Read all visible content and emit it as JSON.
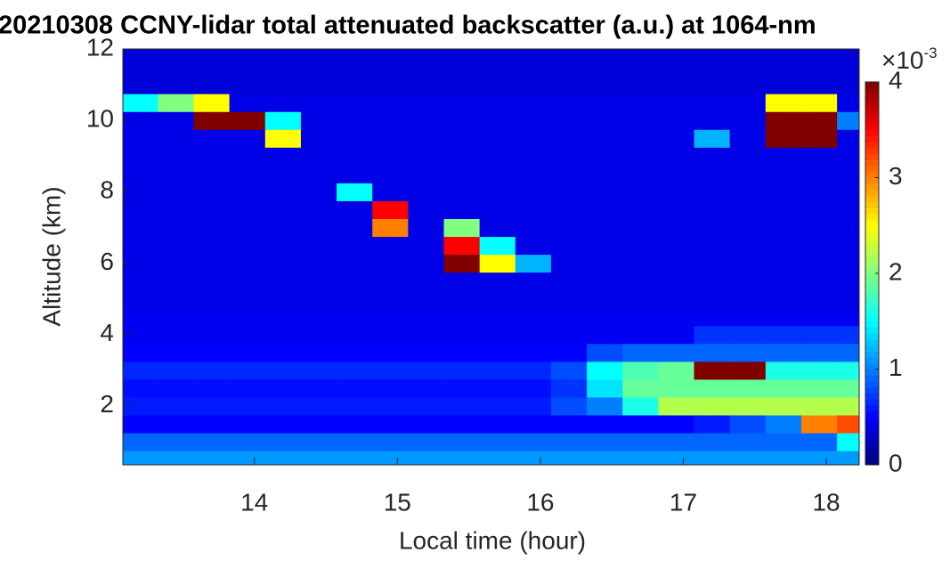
{
  "chart_data": {
    "type": "heatmap",
    "title": "20210308 CCNY-lidar total attenuated backscatter (a.u.) at 1064-nm",
    "x_label": "Local time (hour)",
    "y_label": "Altitude (km)",
    "colormap": "jet",
    "colorbar_scale": "×10",
    "colorbar_exponent": "-3",
    "xlim": [
      13.08,
      18.23
    ],
    "ylim": [
      0.35,
      12
    ],
    "clim": [
      0,
      4
    ],
    "xticks": [
      14,
      15,
      16,
      17,
      18
    ],
    "yticks": [
      2,
      4,
      6,
      8,
      10,
      12
    ],
    "cticks": [
      0,
      1,
      2,
      3,
      4
    ],
    "x": [
      13.2,
      13.45,
      13.7,
      13.95,
      14.2,
      14.45,
      14.7,
      14.95,
      15.2,
      15.45,
      15.7,
      15.95,
      16.2,
      16.45,
      16.7,
      16.95,
      17.2,
      17.45,
      17.7,
      17.95,
      18.2
    ],
    "y": [
      0.5,
      1,
      1.5,
      2,
      2.5,
      3,
      3.5,
      4,
      4.5,
      5,
      5.5,
      6,
      6.5,
      7,
      7.5,
      8,
      8.5,
      9,
      9.5,
      10,
      10.5,
      11,
      11.5,
      12
    ],
    "z": [
      [
        1.1,
        1.1,
        1.1,
        1.1,
        1.1,
        1.1,
        1.1,
        1.1,
        1.1,
        1.1,
        1.1,
        1.1,
        1.1,
        1.1,
        1.1,
        1.1,
        1.1,
        1.1,
        1.1,
        1.1,
        1.1
      ],
      [
        0.9,
        0.9,
        0.9,
        0.9,
        0.9,
        0.9,
        0.9,
        0.9,
        0.9,
        0.9,
        0.9,
        0.9,
        0.9,
        0.9,
        0.9,
        0.9,
        0.9,
        0.9,
        0.9,
        0.9,
        1.5
      ],
      [
        0.5,
        0.5,
        0.5,
        0.5,
        0.5,
        0.5,
        0.5,
        0.5,
        0.5,
        0.5,
        0.5,
        0.5,
        0.5,
        0.5,
        0.5,
        0.5,
        0.6,
        0.8,
        1.0,
        3.0,
        3.2
      ],
      [
        0.6,
        0.6,
        0.6,
        0.6,
        0.6,
        0.6,
        0.6,
        0.6,
        0.6,
        0.6,
        0.6,
        0.6,
        0.8,
        1.0,
        1.6,
        2.2,
        2.2,
        2.2,
        2.2,
        2.2,
        2.2
      ],
      [
        0.55,
        0.55,
        0.55,
        0.55,
        0.55,
        0.55,
        0.55,
        0.55,
        0.55,
        0.55,
        0.55,
        0.55,
        0.7,
        1.4,
        1.9,
        1.9,
        1.9,
        1.9,
        1.9,
        1.9,
        1.9
      ],
      [
        0.65,
        0.65,
        0.65,
        0.65,
        0.65,
        0.65,
        0.65,
        0.65,
        0.65,
        0.65,
        0.65,
        0.65,
        0.8,
        1.5,
        1.8,
        1.9,
        4,
        4,
        1.6,
        1.6,
        1.6
      ],
      [
        0.5,
        0.5,
        0.5,
        0.5,
        0.5,
        0.5,
        0.5,
        0.5,
        0.5,
        0.5,
        0.5,
        0.5,
        0.5,
        0.8,
        0.9,
        0.9,
        0.9,
        0.9,
        0.9,
        0.9,
        0.9
      ],
      [
        0.45,
        0.45,
        0.45,
        0.45,
        0.45,
        0.45,
        0.45,
        0.45,
        0.45,
        0.45,
        0.45,
        0.45,
        0.45,
        0.45,
        0.45,
        0.45,
        0.7,
        0.7,
        0.7,
        0.7,
        0.7
      ],
      [
        0.45,
        0.45,
        0.45,
        0.45,
        0.45,
        0.45,
        0.45,
        0.45,
        0.45,
        0.45,
        0.45,
        0.45,
        0.45,
        0.45,
        0.45,
        0.45,
        0.45,
        0.45,
        0.45,
        0.45,
        0.45
      ],
      [
        0.4,
        0.4,
        0.4,
        0.4,
        0.4,
        0.4,
        0.4,
        0.4,
        0.4,
        0.4,
        0.4,
        0.4,
        0.4,
        0.4,
        0.4,
        0.4,
        0.4,
        0.4,
        0.4,
        0.4,
        0.4
      ],
      [
        0.4,
        0.4,
        0.4,
        0.4,
        0.4,
        0.4,
        0.4,
        0.4,
        0.4,
        0.4,
        0.4,
        0.4,
        0.4,
        0.4,
        0.4,
        0.4,
        0.4,
        0.4,
        0.4,
        0.4,
        0.4
      ],
      [
        0.4,
        0.4,
        0.4,
        0.4,
        0.4,
        0.4,
        0.4,
        0.4,
        0.4,
        4,
        2.5,
        1.2,
        0.4,
        0.4,
        0.4,
        0.4,
        0.4,
        0.4,
        0.4,
        0.4,
        0.4
      ],
      [
        0.4,
        0.4,
        0.4,
        0.4,
        0.4,
        0.4,
        0.4,
        0.4,
        0.4,
        3.5,
        1.5,
        0.4,
        0.4,
        0.4,
        0.4,
        0.4,
        0.4,
        0.4,
        0.4,
        0.4,
        0.4
      ],
      [
        0.4,
        0.4,
        0.4,
        0.4,
        0.4,
        0.4,
        0.4,
        3.0,
        0.4,
        2.0,
        0.4,
        0.4,
        0.4,
        0.4,
        0.4,
        0.4,
        0.4,
        0.4,
        0.4,
        0.4,
        0.4
      ],
      [
        0.4,
        0.4,
        0.4,
        0.4,
        0.4,
        0.4,
        0.4,
        3.5,
        0.4,
        0.4,
        0.4,
        0.4,
        0.4,
        0.4,
        0.4,
        0.4,
        0.4,
        0.4,
        0.4,
        0.4,
        0.4
      ],
      [
        0.4,
        0.4,
        0.4,
        0.4,
        0.4,
        0.4,
        1.5,
        0.4,
        0.4,
        0.4,
        0.4,
        0.4,
        0.4,
        0.4,
        0.4,
        0.4,
        0.4,
        0.4,
        0.4,
        0.4,
        0.4
      ],
      [
        0.4,
        0.4,
        0.4,
        0.4,
        0.4,
        0.4,
        0.4,
        0.4,
        0.4,
        0.4,
        0.4,
        0.4,
        0.4,
        0.4,
        0.4,
        0.4,
        0.4,
        0.4,
        0.4,
        0.4,
        0.4
      ],
      [
        0.4,
        0.4,
        0.4,
        0.4,
        0.4,
        0.4,
        0.4,
        0.4,
        0.4,
        0.4,
        0.4,
        0.4,
        0.4,
        0.4,
        0.4,
        0.4,
        0.4,
        0.4,
        0.4,
        0.4,
        0.4
      ],
      [
        0.4,
        0.4,
        0.4,
        0.4,
        2.5,
        0.4,
        0.4,
        0.4,
        0.4,
        0.4,
        0.4,
        0.4,
        0.4,
        0.4,
        0.4,
        0.4,
        1.2,
        0.4,
        4,
        4,
        0.4
      ],
      [
        0.4,
        0.4,
        4,
        4,
        1.5,
        0.4,
        0.4,
        0.4,
        0.4,
        0.4,
        0.4,
        0.4,
        0.4,
        0.4,
        0.4,
        0.4,
        0.4,
        0.4,
        4,
        4,
        1.0
      ],
      [
        1.5,
        2.0,
        2.5,
        0.4,
        0.4,
        0.4,
        0.4,
        0.4,
        0.4,
        0.4,
        0.4,
        0.4,
        0.4,
        0.4,
        0.4,
        0.4,
        0.4,
        0.4,
        2.5,
        2.5,
        0.4
      ],
      [
        0.35,
        0.35,
        0.35,
        0.35,
        0.35,
        0.35,
        0.35,
        0.35,
        0.35,
        0.35,
        0.35,
        0.35,
        0.35,
        0.35,
        0.35,
        0.35,
        0.35,
        0.35,
        0.35,
        0.35,
        0.35
      ],
      [
        0.35,
        0.35,
        0.35,
        0.35,
        0.35,
        0.35,
        0.35,
        0.35,
        0.35,
        0.35,
        0.35,
        0.35,
        0.35,
        0.35,
        0.35,
        0.35,
        0.35,
        0.35,
        0.35,
        0.35,
        0.35
      ],
      [
        0.35,
        0.35,
        0.35,
        0.35,
        0.35,
        0.35,
        0.35,
        0.35,
        0.35,
        0.35,
        0.35,
        0.35,
        0.35,
        0.35,
        0.35,
        0.35,
        0.35,
        0.35,
        0.35,
        0.35,
        0.35
      ]
    ]
  }
}
